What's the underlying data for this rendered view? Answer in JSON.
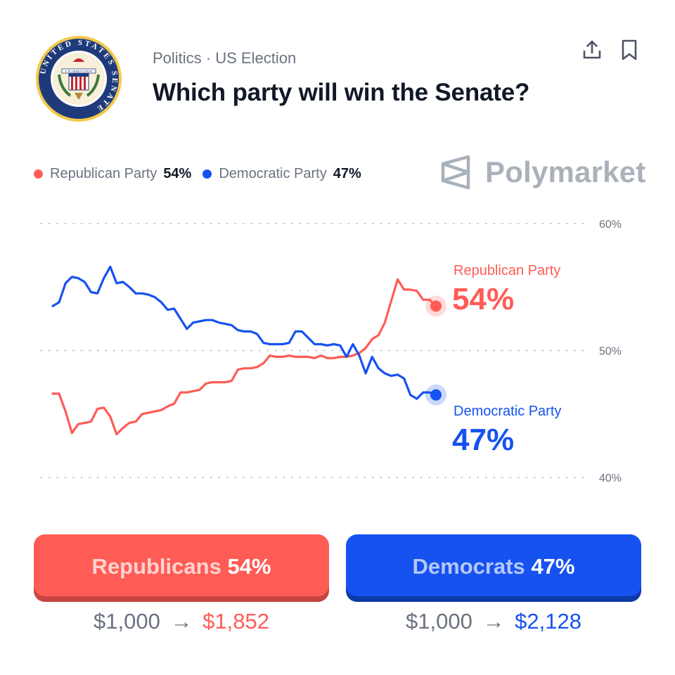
{
  "header": {
    "seal_icon": "us-senate-seal",
    "seal_text": "UNITED STATES SENATE",
    "seal_motto": "E PLURIBUS UNUM",
    "breadcrumb": "Politics · US Election",
    "title": "Which party will win the Senate?",
    "share_icon": "share-icon",
    "bookmark_icon": "bookmark-icon"
  },
  "legend": [
    {
      "name": "Republican Party",
      "pct": "54%",
      "color": "#ff5c56"
    },
    {
      "name": "Democratic Party",
      "pct": "47%",
      "color": "#1652f0"
    }
  ],
  "brand": {
    "name": "Polymarket",
    "icon": "polymarket-logo-icon"
  },
  "chart_data": {
    "type": "line",
    "y_range": [
      40,
      60
    ],
    "y_ticks": [
      "60%",
      "50%",
      "40%"
    ],
    "grid": true,
    "legend_position": "top-left",
    "x": [
      0,
      1,
      2,
      3,
      4,
      5,
      6,
      7,
      8,
      9,
      10,
      11,
      12,
      13,
      14,
      15,
      16,
      17,
      18,
      19,
      20,
      21,
      22,
      23,
      24,
      25,
      26,
      27,
      28,
      29,
      30,
      31,
      32,
      33,
      34,
      35,
      36,
      37,
      38,
      39,
      40,
      41,
      42,
      43,
      44,
      45,
      46,
      47,
      48,
      49,
      50,
      51,
      52,
      53,
      54,
      55,
      56,
      57,
      58,
      59,
      60
    ],
    "series": [
      {
        "name": "Republican Party",
        "color": "#ff5c56",
        "end_label": "54%",
        "values": [
          46.6,
          46.6,
          45.2,
          43.5,
          44.2,
          44.3,
          44.4,
          45.4,
          45.5,
          44.8,
          43.4,
          43.9,
          44.3,
          44.4,
          45.0,
          45.1,
          45.2,
          45.3,
          45.6,
          45.8,
          46.7,
          46.7,
          46.8,
          46.9,
          47.4,
          47.5,
          47.5,
          47.5,
          47.6,
          48.5,
          48.6,
          48.6,
          48.7,
          49.0,
          49.6,
          49.5,
          49.5,
          49.6,
          49.5,
          49.5,
          49.5,
          49.4,
          49.6,
          49.4,
          49.4,
          49.5,
          49.5,
          49.6,
          49.8,
          50.2,
          50.9,
          51.2,
          52.2,
          53.9,
          55.6,
          54.8,
          54.8,
          54.7,
          54.0,
          54.0,
          53.5
        ]
      },
      {
        "name": "Democratic Party",
        "color": "#1652f0",
        "end_label": "47%",
        "values": [
          53.5,
          53.8,
          55.3,
          55.8,
          55.7,
          55.4,
          54.6,
          54.5,
          55.7,
          56.6,
          55.3,
          55.4,
          55.0,
          54.5,
          54.5,
          54.4,
          54.2,
          53.8,
          53.2,
          53.3,
          52.5,
          51.7,
          52.2,
          52.3,
          52.4,
          52.4,
          52.2,
          52.1,
          52.0,
          51.6,
          51.5,
          51.5,
          51.3,
          50.6,
          50.5,
          50.5,
          50.5,
          50.6,
          51.5,
          51.5,
          51.0,
          50.5,
          50.5,
          50.4,
          50.5,
          50.4,
          49.5,
          50.5,
          49.6,
          48.2,
          49.5,
          48.6,
          48.2,
          48.0,
          48.1,
          47.8,
          46.5,
          46.2,
          46.7,
          46.7,
          46.5
        ]
      }
    ]
  },
  "chart_labels": [
    {
      "name": "Republican Party",
      "value": "54%"
    },
    {
      "name": "Democratic Party",
      "value": "47%"
    }
  ],
  "buttons": {
    "rep": {
      "label": "Republicans",
      "pct": "54%"
    },
    "dem": {
      "label": "Democrats",
      "pct": "47%"
    }
  },
  "payouts": {
    "rep": {
      "from": "$1,000",
      "arrow": "→",
      "to": "$1,852"
    },
    "dem": {
      "from": "$1,000",
      "arrow": "→",
      "to": "$2,128"
    }
  }
}
